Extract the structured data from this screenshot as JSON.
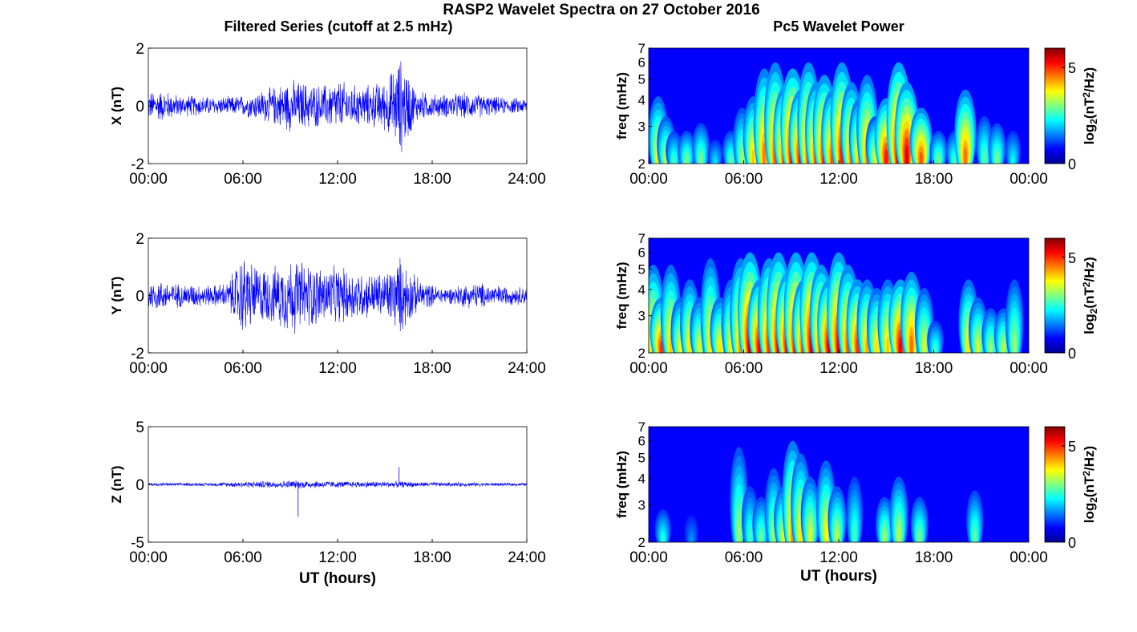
{
  "figure": {
    "title": "RASP2 Wavelet Spectra on 27 October 2016",
    "left_column_title": "Filtered Series (cutoff at 2.5 mHz)",
    "right_column_title": "Pc5 Wavelet Power",
    "x_axis_label": "UT (hours)"
  },
  "chart_data": [
    {
      "type": "line",
      "component": "X",
      "ylabel": "X (nT)",
      "xlabel": "",
      "x_ticks": [
        "00:00",
        "06:00",
        "12:00",
        "18:00",
        "24:00"
      ],
      "xlim_hours": [
        0,
        24
      ],
      "ylim": [
        -2,
        2
      ],
      "y_ticks": [
        -2,
        0,
        2
      ],
      "series_color": "#0000ff",
      "series": [
        {
          "x_hours": [
            0,
            1,
            2,
            3,
            4,
            5,
            6,
            7,
            8,
            9,
            10,
            11,
            12,
            13,
            14,
            15,
            16,
            16.5,
            17,
            18,
            19,
            20,
            21,
            22,
            23,
            24
          ],
          "envelope": [
            0.55,
            0.6,
            0.4,
            0.4,
            0.35,
            0.35,
            0.4,
            0.55,
            0.75,
            1.0,
            0.9,
            0.8,
            1.0,
            0.8,
            0.8,
            0.95,
            1.85,
            1.3,
            0.6,
            0.45,
            0.45,
            0.5,
            0.45,
            0.35,
            0.3,
            0.3
          ]
        }
      ]
    },
    {
      "type": "line",
      "component": "Y",
      "ylabel": "Y (nT)",
      "xlabel": "",
      "x_ticks": [
        "00:00",
        "06:00",
        "12:00",
        "18:00",
        "24:00"
      ],
      "xlim_hours": [
        0,
        24
      ],
      "ylim": [
        -2,
        2
      ],
      "y_ticks": [
        -2,
        0,
        2
      ],
      "series_color": "#0000ff",
      "series": [
        {
          "x_hours": [
            0,
            1,
            2,
            3,
            4,
            5,
            6,
            7,
            8,
            9,
            10,
            11,
            12,
            13,
            14,
            15,
            16,
            17,
            18,
            19,
            20,
            21,
            22,
            23,
            24
          ],
          "envelope": [
            0.6,
            0.55,
            0.45,
            0.45,
            0.4,
            0.5,
            1.6,
            1.1,
            1.1,
            1.5,
            1.3,
            1.1,
            1.1,
            1.0,
            0.85,
            0.9,
            1.5,
            0.7,
            0.4,
            0.3,
            0.45,
            0.5,
            0.4,
            0.35,
            0.35
          ]
        }
      ]
    },
    {
      "type": "line",
      "component": "Z",
      "ylabel": "Z (nT)",
      "xlabel": "UT (hours)",
      "x_ticks": [
        "00:00",
        "06:00",
        "12:00",
        "18:00",
        "24:00"
      ],
      "xlim_hours": [
        0,
        24
      ],
      "ylim": [
        -5,
        5
      ],
      "y_ticks": [
        -5,
        0,
        5
      ],
      "series_color": "#0000ff",
      "series": [
        {
          "x_hours": [
            0,
            2,
            4,
            6,
            8,
            10,
            12,
            14,
            16,
            18,
            20,
            22,
            24
          ],
          "envelope": [
            0.15,
            0.15,
            0.15,
            0.3,
            0.35,
            0.4,
            0.3,
            0.3,
            0.3,
            0.2,
            0.2,
            0.15,
            0.15
          ]
        }
      ],
      "spikes": [
        {
          "x_hours": 9.5,
          "y": -2.8
        },
        {
          "x_hours": 15.9,
          "y": 1.5
        }
      ]
    },
    {
      "type": "heatmap",
      "component": "X",
      "ylabel": "freq (mHz)",
      "xlabel": "",
      "x_ticks": [
        "00:00",
        "06:00",
        "12:00",
        "18:00",
        "00:00"
      ],
      "xlim_hours": [
        0,
        24
      ],
      "y_scale": "log",
      "ylim_mhz": [
        2,
        7
      ],
      "y_ticks": [
        2,
        3,
        4,
        5,
        6,
        7
      ],
      "colormap": "jet",
      "colorbar": {
        "label_main": "log",
        "label_sub": "2",
        "label_rest": "(nT",
        "label_sup": "2",
        "label_end": "/Hz)",
        "ticks": [
          0,
          5
        ],
        "range": [
          0,
          6
        ]
      },
      "bursts": [
        {
          "t": 0.6,
          "p": 3.6,
          "f": 4.6
        },
        {
          "t": 1.1,
          "p": 3.0,
          "f": 3.6
        },
        {
          "t": 1.6,
          "p": 2.2,
          "f": 3.0
        },
        {
          "t": 2.4,
          "p": 2.6,
          "f": 3.0
        },
        {
          "t": 3.3,
          "p": 2.6,
          "f": 3.3
        },
        {
          "t": 4.2,
          "p": 1.6,
          "f": 2.7
        },
        {
          "t": 5.2,
          "p": 2.4,
          "f": 3.0
        },
        {
          "t": 5.9,
          "p": 2.8,
          "f": 4.0
        },
        {
          "t": 6.6,
          "p": 3.8,
          "f": 4.6
        },
        {
          "t": 7.3,
          "p": 4.3,
          "f": 6.5
        },
        {
          "t": 8.0,
          "p": 4.6,
          "f": 7.0
        },
        {
          "t": 8.6,
          "p": 5.0,
          "f": 5.2
        },
        {
          "t": 9.1,
          "p": 5.6,
          "f": 6.5
        },
        {
          "t": 9.6,
          "p": 5.2,
          "f": 5.0
        },
        {
          "t": 10.1,
          "p": 4.8,
          "f": 7.0
        },
        {
          "t": 10.6,
          "p": 4.9,
          "f": 5.5
        },
        {
          "t": 11.1,
          "p": 5.1,
          "f": 6.0
        },
        {
          "t": 11.6,
          "p": 4.6,
          "f": 5.0
        },
        {
          "t": 12.2,
          "p": 5.0,
          "f": 7.0
        },
        {
          "t": 12.8,
          "p": 4.4,
          "f": 5.5
        },
        {
          "t": 13.3,
          "p": 4.0,
          "f": 4.5
        },
        {
          "t": 13.8,
          "p": 4.2,
          "f": 6.0
        },
        {
          "t": 14.3,
          "p": 3.2,
          "f": 3.6
        },
        {
          "t": 15.0,
          "p": 5.0,
          "f": 4.5
        },
        {
          "t": 15.8,
          "p": 5.6,
          "f": 7.0
        },
        {
          "t": 16.3,
          "p": 5.3,
          "f": 5.5
        },
        {
          "t": 17.2,
          "p": 4.6,
          "f": 4.0
        },
        {
          "t": 18.3,
          "p": 2.6,
          "f": 3.0
        },
        {
          "t": 19.3,
          "p": 2.2,
          "f": 3.0
        },
        {
          "t": 20.0,
          "p": 4.4,
          "f": 5.0
        },
        {
          "t": 21.2,
          "p": 2.4,
          "f": 3.6
        },
        {
          "t": 22.0,
          "p": 2.6,
          "f": 3.3
        },
        {
          "t": 23.0,
          "p": 1.8,
          "f": 3.0
        }
      ]
    },
    {
      "type": "heatmap",
      "component": "Y",
      "ylabel": "freq (mHz)",
      "xlabel": "",
      "x_ticks": [
        "00:00",
        "06:00",
        "12:00",
        "18:00",
        "00:00"
      ],
      "xlim_hours": [
        0,
        24
      ],
      "y_scale": "log",
      "ylim_mhz": [
        2,
        7
      ],
      "y_ticks": [
        2,
        3,
        4,
        5,
        6,
        7
      ],
      "colormap": "jet",
      "colorbar": {
        "label_main": "log",
        "label_sub": "2",
        "label_rest": "(nT",
        "label_sup": "2",
        "label_end": "/Hz)",
        "ticks": [
          0,
          5
        ],
        "range": [
          0,
          6
        ]
      },
      "bursts": [
        {
          "t": 0.3,
          "p": 4.2,
          "f": 6.0
        },
        {
          "t": 0.8,
          "p": 4.8,
          "f": 4.0
        },
        {
          "t": 1.4,
          "p": 3.8,
          "f": 6.0
        },
        {
          "t": 2.0,
          "p": 3.4,
          "f": 4.0
        },
        {
          "t": 2.6,
          "p": 3.6,
          "f": 5.0
        },
        {
          "t": 3.2,
          "p": 3.2,
          "f": 4.0
        },
        {
          "t": 3.9,
          "p": 3.6,
          "f": 6.5
        },
        {
          "t": 4.5,
          "p": 3.6,
          "f": 4.0
        },
        {
          "t": 5.2,
          "p": 3.4,
          "f": 5.0
        },
        {
          "t": 5.8,
          "p": 4.2,
          "f": 6.5
        },
        {
          "t": 6.4,
          "p": 5.5,
          "f": 7.0
        },
        {
          "t": 7.0,
          "p": 5.2,
          "f": 5.0
        },
        {
          "t": 7.6,
          "p": 4.8,
          "f": 6.5
        },
        {
          "t": 8.2,
          "p": 5.3,
          "f": 7.0
        },
        {
          "t": 8.8,
          "p": 5.6,
          "f": 5.5
        },
        {
          "t": 9.3,
          "p": 5.4,
          "f": 7.0
        },
        {
          "t": 9.8,
          "p": 5.0,
          "f": 5.0
        },
        {
          "t": 10.3,
          "p": 5.4,
          "f": 7.0
        },
        {
          "t": 10.9,
          "p": 5.0,
          "f": 6.0
        },
        {
          "t": 11.4,
          "p": 5.4,
          "f": 5.0
        },
        {
          "t": 12.0,
          "p": 5.2,
          "f": 7.0
        },
        {
          "t": 12.6,
          "p": 4.6,
          "f": 6.0
        },
        {
          "t": 13.2,
          "p": 4.8,
          "f": 5.0
        },
        {
          "t": 13.8,
          "p": 4.0,
          "f": 5.0
        },
        {
          "t": 14.4,
          "p": 3.6,
          "f": 4.5
        },
        {
          "t": 15.1,
          "p": 3.8,
          "f": 5.0
        },
        {
          "t": 15.9,
          "p": 5.2,
          "f": 5.0
        },
        {
          "t": 16.6,
          "p": 4.4,
          "f": 5.5
        },
        {
          "t": 17.4,
          "p": 3.2,
          "f": 4.5
        },
        {
          "t": 18.1,
          "p": 2.2,
          "f": 3.0
        },
        {
          "t": 20.2,
          "p": 3.6,
          "f": 5.0
        },
        {
          "t": 20.8,
          "p": 3.2,
          "f": 4.0
        },
        {
          "t": 21.6,
          "p": 2.8,
          "f": 3.5
        },
        {
          "t": 22.4,
          "p": 3.0,
          "f": 3.5
        },
        {
          "t": 23.1,
          "p": 2.8,
          "f": 5.0
        }
      ]
    },
    {
      "type": "heatmap",
      "component": "Z",
      "ylabel": "freq (mHz)",
      "xlabel": "UT (hours)",
      "x_ticks": [
        "00:00",
        "06:00",
        "12:00",
        "18:00",
        "00:00"
      ],
      "xlim_hours": [
        0,
        24
      ],
      "y_scale": "log",
      "ylim_mhz": [
        2,
        7
      ],
      "y_ticks": [
        2,
        3,
        4,
        5,
        6,
        7
      ],
      "colormap": "jet",
      "colorbar": {
        "label_main": "log",
        "label_sub": "2",
        "label_rest": "(nT",
        "label_sup": "2",
        "label_end": "/Hz)",
        "ticks": [
          0,
          5
        ],
        "range": [
          0,
          6
        ]
      },
      "bursts": [
        {
          "t": 0.9,
          "p": 2.0,
          "f": 3.0
        },
        {
          "t": 2.7,
          "p": 1.0,
          "f": 2.8
        },
        {
          "t": 5.7,
          "p": 2.8,
          "f": 6.5
        },
        {
          "t": 6.4,
          "p": 2.2,
          "f": 4.0
        },
        {
          "t": 7.1,
          "p": 2.5,
          "f": 3.5
        },
        {
          "t": 7.9,
          "p": 2.8,
          "f": 5.0
        },
        {
          "t": 8.5,
          "p": 3.2,
          "f": 4.0
        },
        {
          "t": 9.1,
          "p": 4.2,
          "f": 7.0
        },
        {
          "t": 9.6,
          "p": 3.6,
          "f": 6.0
        },
        {
          "t": 10.2,
          "p": 3.2,
          "f": 4.5
        },
        {
          "t": 11.2,
          "p": 3.4,
          "f": 5.5
        },
        {
          "t": 11.9,
          "p": 3.0,
          "f": 4.0
        },
        {
          "t": 13.0,
          "p": 2.2,
          "f": 4.5
        },
        {
          "t": 14.9,
          "p": 2.8,
          "f": 3.5
        },
        {
          "t": 15.8,
          "p": 3.0,
          "f": 4.5
        },
        {
          "t": 17.1,
          "p": 2.6,
          "f": 3.5
        },
        {
          "t": 20.6,
          "p": 2.4,
          "f": 3.8
        }
      ]
    }
  ]
}
